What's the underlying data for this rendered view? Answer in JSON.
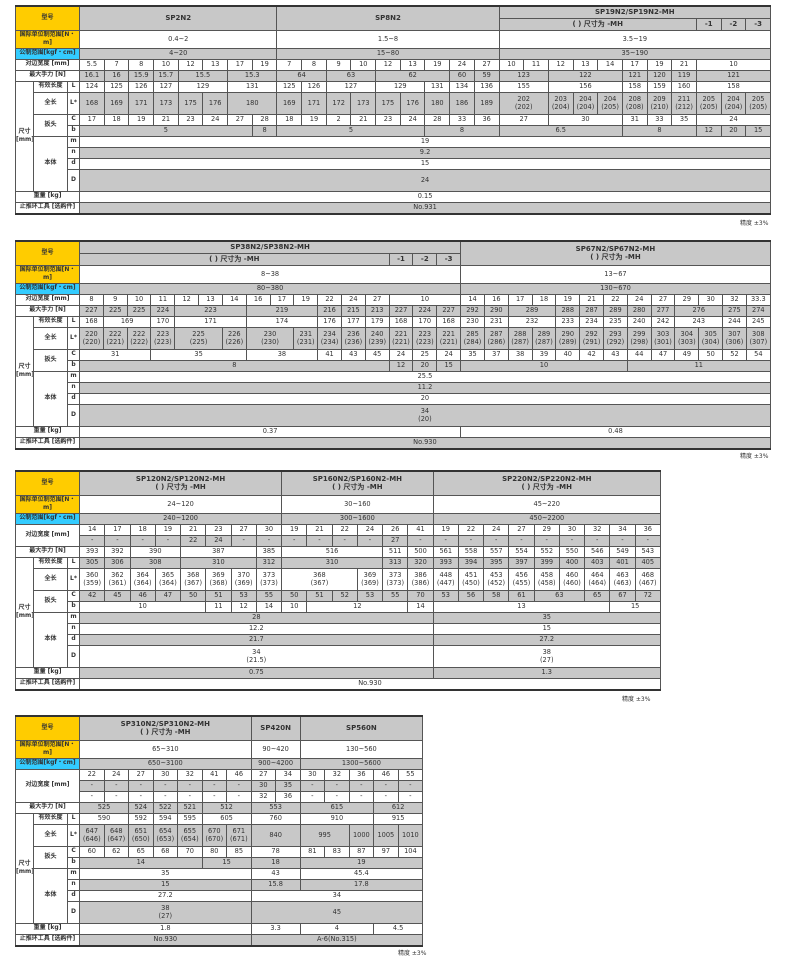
{
  "labels": {
    "model": "型号",
    "si": "国际单位制范围[N・m]",
    "metric": "公制范围[kgf・cm]",
    "width": "对边宽度 [mm]",
    "max": "最大手力 [N]",
    "dim": "尺寸\n[mm]",
    "eff": "有效长度",
    "total": "全长",
    "head": "扳头",
    "body": "本体",
    "L": "L",
    "Ls": "L*",
    "C": "C",
    "b": "b",
    "m": "m",
    "n": "n",
    "d": "d",
    "D": "D",
    "weight": "重量 [kg]",
    "tool": "止推环工具 [选购件]",
    "precision": "精度 ±3%"
  },
  "colors": {
    "model_label": "#ffcc00",
    "metric_label": "#33ccff",
    "shade": "#c8c8c8"
  },
  "tables": [
    {
      "cols": 28,
      "header_rows": [
        [
          {
            "t": "SP2N2",
            "s": 8,
            "r": 2
          },
          {
            "t": "SP8N2",
            "s": 9,
            "r": 2
          },
          {
            "t": "SP19N2/SP19N2-MH",
            "s": 11
          }
        ],
        [
          {
            "t": "( ) 尺寸为 -MH",
            "s": 8
          },
          "-1",
          "-2",
          "-3"
        ]
      ],
      "si": [
        {
          "t": "0.4~2",
          "s": 8
        },
        {
          "t": "1.5~8",
          "s": 9
        },
        {
          "t": "3.5~19",
          "s": 11
        }
      ],
      "metric": [
        {
          "t": "4~20",
          "s": 8
        },
        {
          "t": "15~80",
          "s": 9
        },
        {
          "t": "35~190",
          "s": 11
        }
      ],
      "width_rows": [
        [
          "5.5",
          "7",
          "8",
          "10",
          "12",
          "13",
          "17",
          "19",
          "7",
          "8",
          "9",
          "10",
          "12",
          "13",
          "19",
          "24",
          "27",
          "10",
          "11",
          "12",
          "13",
          "14",
          "17",
          "19",
          "21",
          {
            "t": "10",
            "s": 3
          }
        ]
      ],
      "max": [
        "16.1",
        "16",
        "15.9",
        "15.7",
        {
          "t": "15.5",
          "s": 2
        },
        {
          "t": "15.3",
          "s": 2
        },
        {
          "t": "64",
          "s": 2
        },
        {
          "t": "63",
          "s": 2
        },
        {
          "t": "62",
          "s": 3
        },
        "60",
        "59",
        {
          "t": "123",
          "s": 2
        },
        {
          "t": "122",
          "s": 3
        },
        "121",
        "120",
        "119",
        {
          "t": "121",
          "s": 3
        }
      ],
      "L": [
        "124",
        "125",
        "126",
        "127",
        {
          "t": "129",
          "s": 2
        },
        {
          "t": "131",
          "s": 2
        },
        "125",
        "126",
        {
          "t": "127",
          "s": 2
        },
        {
          "t": "129",
          "s": 2
        },
        "131",
        "134",
        "136",
        {
          "t": "155",
          "s": 2
        },
        {
          "t": "156",
          "s": 3
        },
        "158",
        "159",
        "160",
        {
          "t": "158",
          "s": 3
        }
      ],
      "Ls": [
        "168",
        "169",
        "171",
        "173",
        "175",
        "176",
        {
          "t": "180",
          "s": 2
        },
        "169",
        "171",
        "172",
        "173",
        "175",
        "176",
        "180",
        "186",
        "189",
        {
          "t": "202\n(202)",
          "s": 2
        },
        "203\n(204)",
        "204\n(204)",
        "204\n(205)",
        "208\n(208)",
        "209\n(210)",
        "211\n(212)",
        "205\n(205)",
        "204\n(204)",
        "205\n(205)"
      ],
      "C": [
        "17",
        "18",
        "19",
        "21",
        "23",
        "24",
        "27",
        "28",
        "18",
        "19",
        "2",
        "21",
        "23",
        "24",
        "28",
        "33",
        "36",
        {
          "t": "27",
          "s": 2
        },
        {
          "t": "30",
          "s": 3
        },
        "31",
        "33",
        "35",
        {
          "t": "24",
          "s": 3
        }
      ],
      "b": [
        {
          "t": "5",
          "s": 7
        },
        "8",
        {
          "t": "5",
          "s": 6
        },
        {
          "t": "8",
          "s": 3
        },
        {
          "t": "6.5",
          "s": 5
        },
        {
          "t": "8",
          "s": 3
        },
        "12",
        "20",
        "15"
      ],
      "m": [
        {
          "t": "19",
          "s": 28
        }
      ],
      "n": [
        {
          "t": "9.2",
          "s": 28
        }
      ],
      "d": [
        {
          "t": "15",
          "s": 28
        }
      ],
      "D": [
        {
          "t": "24",
          "s": 28
        }
      ],
      "weight": [
        {
          "t": "0.15",
          "s": 28
        }
      ],
      "tool": [
        {
          "t": "No.931",
          "s": 28
        }
      ]
    },
    {
      "cols": 29,
      "header_rows": [
        [
          {
            "t": "SP38N2/SP38N2-MH",
            "s": 16
          },
          {
            "t": "SP67N2/SP67N2-MH\n( ) 尺寸为 -MH",
            "s": 13,
            "r": 2
          }
        ],
        [
          {
            "t": "( ) 尺寸为 -MH",
            "s": 13
          },
          "-1",
          "-2",
          "-3"
        ]
      ],
      "si": [
        {
          "t": "8~38",
          "s": 16
        },
        {
          "t": "13~67",
          "s": 13
        }
      ],
      "metric": [
        {
          "t": "80~380",
          "s": 16
        },
        {
          "t": "130~670",
          "s": 13
        }
      ],
      "width_rows": [
        [
          "8",
          "9",
          "10",
          "11",
          "12",
          "13",
          "14",
          "16",
          "17",
          "19",
          "22",
          "24",
          "27",
          {
            "t": "10",
            "s": 3
          },
          "14",
          "16",
          "17",
          "18",
          "19",
          "21",
          "22",
          "24",
          "27",
          "29",
          "30",
          "32",
          "33.3"
        ]
      ],
      "max": [
        "227",
        "225",
        "225",
        "224",
        {
          "t": "223",
          "s": 3
        },
        {
          "t": "219",
          "s": 3
        },
        "216",
        "215",
        "213",
        "227",
        "224",
        "227",
        "292",
        "290",
        {
          "t": "289",
          "s": 2
        },
        "288",
        "287",
        "289",
        "280",
        "277",
        {
          "t": "276",
          "s": 2
        },
        "275",
        "274"
      ],
      "L": [
        "168",
        {
          "t": "169",
          "s": 2
        },
        "170",
        {
          "t": "171",
          "s": 3
        },
        {
          "t": "174",
          "s": 3
        },
        "176",
        "177",
        "179",
        "168",
        "170",
        "168",
        "230",
        "231",
        {
          "t": "232",
          "s": 2
        },
        "233",
        "234",
        "235",
        "240",
        "242",
        {
          "t": "243",
          "s": 2
        },
        "244",
        "245"
      ],
      "Ls": [
        "220\n(220)",
        "222\n(221)",
        "222\n(222)",
        "223\n(223)",
        {
          "t": "225\n(225)",
          "s": 2
        },
        "226\n(226)",
        {
          "t": "230\n(230)",
          "s": 2
        },
        "231\n(231)",
        "234\n(234)",
        "236\n(236)",
        "240\n(239)",
        "221\n(221)",
        "223\n(223)",
        "221\n(221)",
        "285\n(284)",
        "287\n(286)",
        "288\n(287)",
        "289\n(287)",
        "290\n(289)",
        "292\n(291)",
        "293\n(292)",
        "299\n(298)",
        "303\n(301)",
        "304\n(303)",
        "305\n(304)",
        "307\n(306)",
        "308\n(307)"
      ],
      "C": [
        {
          "t": "31",
          "s": 3
        },
        {
          "t": "35",
          "s": 4
        },
        {
          "t": "38",
          "s": 3
        },
        "41",
        "43",
        "45",
        "24",
        "25",
        "24",
        "35",
        "37",
        "38",
        "39",
        "40",
        "42",
        "43",
        "44",
        "47",
        "49",
        "50",
        "52",
        "54"
      ],
      "b": [
        {
          "t": "8",
          "s": 13
        },
        "12",
        "20",
        "15",
        {
          "t": "10",
          "s": 7
        },
        {
          "t": "11",
          "s": 6
        }
      ],
      "m": [
        {
          "t": "25.5",
          "s": 29
        }
      ],
      "n": [
        {
          "t": "11.2",
          "s": 29
        }
      ],
      "d": [
        {
          "t": "20",
          "s": 29
        }
      ],
      "D": [
        {
          "t": "34\n(20)",
          "s": 29
        }
      ],
      "weight": [
        {
          "t": "0.37",
          "s": 16
        },
        {
          "t": "0.48",
          "s": 13
        }
      ],
      "tool": [
        {
          "t": "No.930",
          "s": 29
        }
      ]
    },
    {
      "cols": 23,
      "header_rows": [
        [
          {
            "t": "SP120N2/SP120N2-MH\n( ) 尺寸为 -MH",
            "s": 8
          },
          {
            "t": "SP160N2/SP160N2-MH\n( ) 尺寸为 -MH",
            "s": 6
          },
          {
            "t": "SP220N2/SP220N2-MH\n( ) 尺寸为 -MH",
            "s": 9
          }
        ]
      ],
      "si": [
        {
          "t": "24~120",
          "s": 8
        },
        {
          "t": "30~160",
          "s": 6
        },
        {
          "t": "45~220",
          "s": 9
        }
      ],
      "metric": [
        {
          "t": "240~1200",
          "s": 8
        },
        {
          "t": "300~1600",
          "s": 6
        },
        {
          "t": "450~2200",
          "s": 9
        }
      ],
      "width_rows": [
        [
          "14",
          "17",
          "18",
          "19",
          "21",
          "23",
          "27",
          "30",
          "19",
          "21",
          "22",
          "24",
          "26",
          "41",
          "19",
          "22",
          "24",
          "27",
          "29",
          "30",
          "32",
          "34",
          "36"
        ],
        [
          "-",
          "-",
          "-",
          "-",
          "22",
          "24",
          "-",
          "-",
          "-",
          "-",
          "-",
          "-",
          "27",
          "-",
          "-",
          "-",
          "-",
          "-",
          "-",
          "-",
          "-",
          "-",
          "-"
        ]
      ],
      "max": [
        "393",
        "392",
        {
          "t": "390",
          "s": 2
        },
        {
          "t": "387",
          "s": 3
        },
        "385",
        {
          "t": "516",
          "s": 4
        },
        "511",
        "500",
        "561",
        "558",
        "557",
        "554",
        "552",
        "550",
        "546",
        "549",
        "543"
      ],
      "L": [
        "305",
        "306",
        {
          "t": "308",
          "s": 2
        },
        {
          "t": "310",
          "s": 3
        },
        "312",
        {
          "t": "310",
          "s": 4
        },
        "313",
        "320",
        "393",
        "394",
        "395",
        "397",
        "399",
        "400",
        "403",
        "401",
        "405"
      ],
      "Ls": [
        "360\n(359)",
        "362\n(361)",
        "364\n(364)",
        "365\n(364)",
        "368\n(367)",
        "369\n(368)",
        "370\n(369)",
        "373\n(373)",
        {
          "t": "368\n(367)",
          "s": 3
        },
        "369\n(369)",
        "373\n(373)",
        "386\n(386)",
        "448\n(447)",
        "451\n(450)",
        "453\n(452)",
        "456\n(455)",
        "458\n(458)",
        "460\n(460)",
        "464\n(464)",
        "463\n(463)",
        "468\n(467)"
      ],
      "C": [
        "42",
        "45",
        "46",
        "47",
        "50",
        "51",
        "53",
        "55",
        "50",
        "51",
        "52",
        "53",
        "55",
        "70",
        "53",
        "56",
        "58",
        "61",
        {
          "t": "63",
          "s": 2
        },
        "65",
        "67",
        "72"
      ],
      "b": [
        {
          "t": "10",
          "s": 5
        },
        "11",
        "12",
        "14",
        "10",
        {
          "t": "12",
          "s": 4
        },
        "14",
        {
          "t": "13",
          "s": 7
        },
        {
          "t": "15",
          "s": 2
        }
      ],
      "m": [
        {
          "t": "28",
          "s": 14
        },
        {
          "t": "35",
          "s": 9
        }
      ],
      "n": [
        {
          "t": "12.2",
          "s": 14
        },
        {
          "t": "15",
          "s": 9
        }
      ],
      "d": [
        {
          "t": "21.7",
          "s": 14
        },
        {
          "t": "27.2",
          "s": 9
        }
      ],
      "D": [
        {
          "t": "34\n(21.5)",
          "s": 14
        },
        {
          "t": "38\n(27)",
          "s": 9
        }
      ],
      "weight": [
        {
          "t": "0.75",
          "s": 14
        },
        {
          "t": "1.3",
          "s": 9
        }
      ],
      "tool": [
        {
          "t": "No.930",
          "s": 23
        }
      ]
    },
    {
      "cols": 14,
      "header_rows": [
        [
          {
            "t": "SP310N2/SP310N2-MH\n( ) 尺寸为 -MH",
            "s": 7
          },
          {
            "t": "SP420N",
            "s": 2
          },
          {
            "t": "SP560N",
            "s": 5
          }
        ]
      ],
      "si": [
        {
          "t": "65~310",
          "s": 7
        },
        {
          "t": "90~420",
          "s": 2
        },
        {
          "t": "130~560",
          "s": 5
        }
      ],
      "metric": [
        {
          "t": "650~3100",
          "s": 7
        },
        {
          "t": "900~4200",
          "s": 2
        },
        {
          "t": "1300~5600",
          "s": 5
        }
      ],
      "width_rows": [
        [
          "22",
          "24",
          "27",
          "30",
          "32",
          "41",
          "46",
          "27",
          "34",
          "30",
          "32",
          "36",
          "46",
          "55"
        ],
        [
          "-",
          "-",
          "-",
          "-",
          "-",
          "-",
          "-",
          "30",
          "35",
          "-",
          "-",
          "-",
          "-",
          "-"
        ],
        [
          "-",
          "-",
          "-",
          "-",
          "-",
          "-",
          "-",
          "32",
          "36",
          "-",
          "-",
          "-",
          "-",
          "-"
        ]
      ],
      "max": [
        {
          "t": "525",
          "s": 2
        },
        "524",
        "522",
        "521",
        {
          "t": "512",
          "s": 2
        },
        {
          "t": "553",
          "s": 2
        },
        {
          "t": "615",
          "s": 3
        },
        {
          "t": "612",
          "s": 2
        }
      ],
      "L": [
        {
          "t": "590",
          "s": 2
        },
        "592",
        "594",
        "595",
        {
          "t": "605",
          "s": 2
        },
        {
          "t": "760",
          "s": 2
        },
        {
          "t": "910",
          "s": 3
        },
        {
          "t": "915",
          "s": 2
        }
      ],
      "Ls": [
        "647\n(646)",
        "648\n(647)",
        "651\n(650)",
        "654\n(653)",
        "655\n(654)",
        "670\n(670)",
        "671\n(671)",
        {
          "t": "840",
          "s": 2
        },
        {
          "t": "995",
          "s": 2
        },
        "1000",
        "1005",
        "1010"
      ],
      "C": [
        "60",
        "62",
        "65",
        "68",
        "70",
        "80",
        "85",
        {
          "t": "78",
          "s": 2
        },
        "81",
        "83",
        "87",
        "97",
        "104"
      ],
      "b": [
        {
          "t": "14",
          "s": 5
        },
        {
          "t": "15",
          "s": 2
        },
        {
          "t": "18",
          "s": 2
        },
        {
          "t": "19",
          "s": 5
        }
      ],
      "m": [
        {
          "t": "35",
          "s": 7
        },
        {
          "t": "43",
          "s": 2
        },
        {
          "t": "45.4",
          "s": 5
        }
      ],
      "n": [
        {
          "t": "15",
          "s": 7
        },
        {
          "t": "15.8",
          "s": 2
        },
        {
          "t": "17.8",
          "s": 5
        }
      ],
      "d": [
        {
          "t": "27.2",
          "s": 7
        },
        {
          "t": "34",
          "s": 7
        }
      ],
      "D": [
        {
          "t": "38\n(27)",
          "s": 7
        },
        {
          "t": "45",
          "s": 7
        }
      ],
      "weight": [
        {
          "t": "1.8",
          "s": 7
        },
        {
          "t": "3.3",
          "s": 2
        },
        {
          "t": "4",
          "s": 3
        },
        {
          "t": "4.5",
          "s": 2
        }
      ],
      "tool": [
        {
          "t": "No.930",
          "s": 7
        },
        {
          "t": "A-6(No.315)",
          "s": 7
        }
      ]
    }
  ]
}
